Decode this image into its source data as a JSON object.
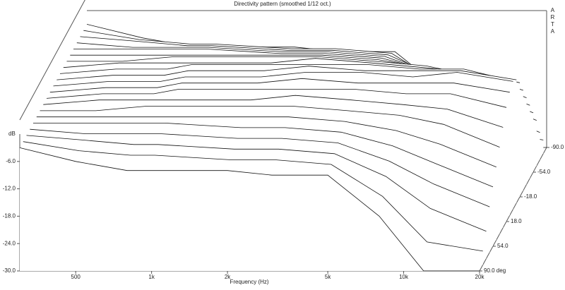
{
  "chart_data": {
    "type": "waterfall3d",
    "title": "Directivity pattern (smoothed 1/12 oct.)",
    "watermark": "ARTA",
    "x_label": "Frequency (Hz)",
    "y_label": "dB",
    "log_x": true,
    "xlim": [
      300,
      20000
    ],
    "xticks": [
      {
        "value": 500,
        "label": "500"
      },
      {
        "value": 1000,
        "label": "1k"
      },
      {
        "value": 2000,
        "label": "2k"
      },
      {
        "value": 5000,
        "label": "5k"
      },
      {
        "value": 10000,
        "label": "10k"
      },
      {
        "value": 20000,
        "label": "20k"
      }
    ],
    "ylim": [
      -30,
      0
    ],
    "yticks": [
      {
        "value": -30,
        "label": "-30.0"
      },
      {
        "value": -24,
        "label": "-24.0"
      },
      {
        "value": -18,
        "label": "-18.0"
      },
      {
        "value": -12,
        "label": "-12.0"
      },
      {
        "value": -6,
        "label": "-6.0"
      }
    ],
    "zlim": [
      90,
      -90
    ],
    "zticks": [
      {
        "value": 90,
        "label": "90.0 deg"
      },
      {
        "value": 54,
        "label": "54.0"
      },
      {
        "value": 18,
        "label": "18.0"
      },
      {
        "value": -18,
        "label": "-18.0"
      },
      {
        "value": -54,
        "label": "-54.0"
      },
      {
        "value": -90,
        "label": "-90.0"
      }
    ],
    "x": [
      300,
      500,
      800,
      1000,
      2000,
      3000,
      5000,
      8000,
      12000,
      20000
    ],
    "color": "#111111",
    "series": [
      {
        "z": -90,
        "values": [
          -3,
          -6,
          -8,
          -8,
          -8,
          -9,
          -9,
          -18,
          -30,
          -30
        ]
      },
      {
        "z": -81,
        "values": [
          -3,
          -5,
          -6,
          -6,
          -7,
          -7,
          -8,
          -15,
          -25,
          -27
        ]
      },
      {
        "z": -72,
        "values": [
          -3,
          -4,
          -5,
          -5,
          -6,
          -6,
          -7,
          -12,
          -19,
          -24
        ]
      },
      {
        "z": -63,
        "values": [
          -3,
          -4,
          -4,
          -4,
          -5,
          -5,
          -6,
          -10,
          -15,
          -20
        ]
      },
      {
        "z": -54,
        "values": [
          -3,
          -3,
          -3,
          -3,
          -4,
          -4,
          -5,
          -8,
          -12,
          -17
        ]
      },
      {
        "z": -45,
        "values": [
          -3,
          -3,
          -3,
          -3,
          -3,
          -3,
          -4,
          -6,
          -9,
          -14
        ]
      },
      {
        "z": -36,
        "values": [
          -3,
          -3,
          -2,
          -2,
          -2,
          -2,
          -3,
          -4,
          -6,
          -11
        ]
      },
      {
        "z": -27,
        "values": [
          -3,
          -2,
          -2,
          -2,
          -2,
          -1,
          -2,
          -3,
          -4,
          -8
        ]
      },
      {
        "z": -18,
        "values": [
          -3,
          -2,
          -2,
          -1,
          -1,
          -1,
          -1,
          -2,
          -2,
          -5
        ]
      },
      {
        "z": -9,
        "values": [
          -3,
          -2,
          -2,
          -1,
          -1,
          0,
          -1,
          -1,
          -1,
          -3
        ]
      },
      {
        "z": 0,
        "values": [
          -3,
          -2,
          -2,
          -1,
          -1,
          0,
          0,
          -1,
          0,
          -2
        ]
      },
      {
        "z": 9,
        "values": [
          -3,
          -2,
          -2,
          -1,
          -1,
          0,
          -1,
          -1,
          -1,
          -3
        ]
      },
      {
        "z": 18,
        "values": [
          -3,
          -2,
          -2,
          -1,
          -1,
          -1,
          -1,
          -2,
          -2,
          -5
        ]
      },
      {
        "z": 27,
        "values": [
          -3,
          -2,
          -2,
          -2,
          -2,
          -1,
          -2,
          -3,
          -4,
          -8
        ]
      },
      {
        "z": 36,
        "values": [
          -3,
          -3,
          -2,
          -2,
          -2,
          -2,
          -3,
          -4,
          -6,
          -11
        ]
      },
      {
        "z": 45,
        "values": [
          -3,
          -3,
          -3,
          -3,
          -3,
          -3,
          -4,
          -6,
          -9,
          -14
        ]
      },
      {
        "z": 54,
        "values": [
          -3,
          -3,
          -3,
          -3,
          -4,
          -4,
          -5,
          -8,
          -12,
          -17
        ]
      },
      {
        "z": 63,
        "values": [
          -3,
          -4,
          -4,
          -4,
          -5,
          -5,
          -6,
          -10,
          -15,
          -20
        ]
      },
      {
        "z": 72,
        "values": [
          -3,
          -4,
          -5,
          -5,
          -6,
          -6,
          -7,
          -12,
          -19,
          -24
        ]
      },
      {
        "z": 81,
        "values": [
          -3,
          -5,
          -6,
          -6,
          -7,
          -7,
          -8,
          -15,
          -25,
          -27
        ]
      },
      {
        "z": 90,
        "values": [
          -3,
          -6,
          -8,
          -8,
          -8,
          -9,
          -9,
          -18,
          -30,
          -30
        ]
      }
    ]
  }
}
